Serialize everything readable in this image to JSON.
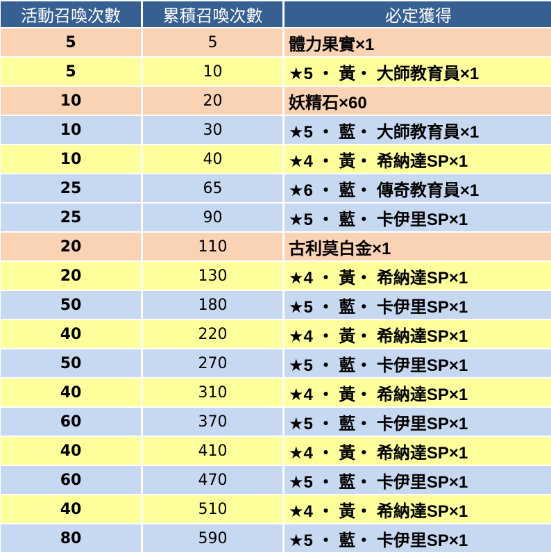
{
  "headers": [
    "活動召喚次數",
    "累積召喚次數",
    "必定獲得"
  ],
  "colors": {
    "header": "#365f92",
    "peach": "#fad2b4",
    "yellow": "#ffff9c",
    "blue": "#c6d9f1"
  },
  "rows": [
    {
      "event": "5",
      "total": "5",
      "reward": "體力果實×1",
      "color": "peach"
    },
    {
      "event": "5",
      "total": "10",
      "reward": "★5 ・ 黃・ 大師教育員×1",
      "color": "yellow"
    },
    {
      "event": "10",
      "total": "20",
      "reward": "妖精石×60",
      "color": "peach"
    },
    {
      "event": "10",
      "total": "30",
      "reward": "★5 ・ 藍・ 大師教育員×1",
      "color": "blue"
    },
    {
      "event": "10",
      "total": "40",
      "reward": "★4 ・ 黃・ 希納達SP×1",
      "color": "yellow"
    },
    {
      "event": "25",
      "total": "65",
      "reward": "★6 ・ 藍・ 傳奇教育員×1",
      "color": "blue"
    },
    {
      "event": "25",
      "total": "90",
      "reward": "★5 ・ 藍・ 卡伊里SP×1",
      "color": "blue"
    },
    {
      "event": "20",
      "total": "110",
      "reward": "古利莫白金×1",
      "color": "peach"
    },
    {
      "event": "20",
      "total": "130",
      "reward": "★4 ・ 黃・ 希納達SP×1",
      "color": "yellow"
    },
    {
      "event": "50",
      "total": "180",
      "reward": "★5 ・ 藍・ 卡伊里SP×1",
      "color": "blue"
    },
    {
      "event": "40",
      "total": "220",
      "reward": "★4 ・ 黃・ 希納達SP×1",
      "color": "yellow"
    },
    {
      "event": "50",
      "total": "270",
      "reward": "★5 ・ 藍・ 卡伊里SP×1",
      "color": "blue"
    },
    {
      "event": "40",
      "total": "310",
      "reward": "★4 ・ 黃・ 希納達SP×1",
      "color": "yellow"
    },
    {
      "event": "60",
      "total": "370",
      "reward": "★5 ・ 藍・ 卡伊里SP×1",
      "color": "blue"
    },
    {
      "event": "40",
      "total": "410",
      "reward": "★4 ・ 黃・ 希納達SP×1",
      "color": "yellow"
    },
    {
      "event": "60",
      "total": "470",
      "reward": "★5 ・ 藍・ 卡伊里SP×1",
      "color": "blue"
    },
    {
      "event": "40",
      "total": "510",
      "reward": "★4 ・ 黃・ 希納達SP×1",
      "color": "yellow"
    },
    {
      "event": "80",
      "total": "590",
      "reward": "★5 ・ 藍・ 卡伊里SP×1",
      "color": "blue"
    }
  ]
}
